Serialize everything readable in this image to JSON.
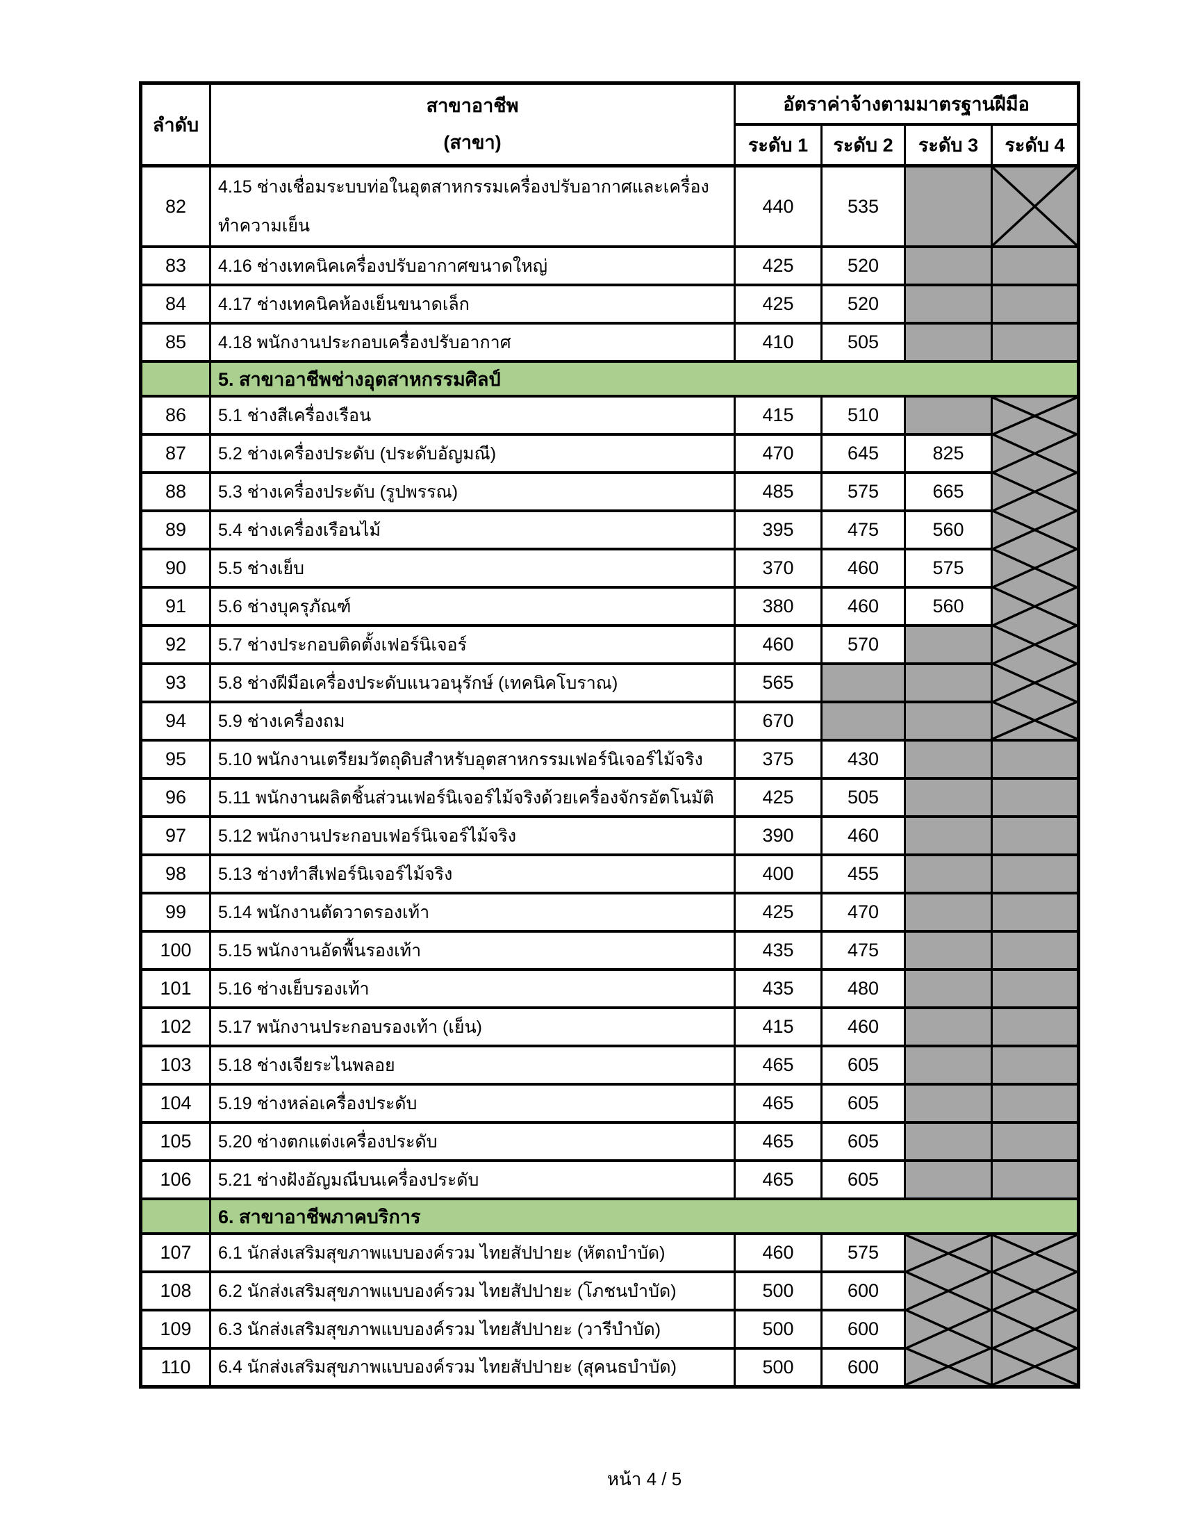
{
  "header": {
    "col_no": "ลำดับ",
    "col_occupation_line1": "สาขาอาชีพ",
    "col_occupation_line2": "(สาขา)",
    "col_rate_group": "อัตราค่าจ้างตามมาตรฐานฝีมือ",
    "levels": [
      "ระดับ 1",
      "ระดับ 2",
      "ระดับ 3",
      "ระดับ 4"
    ]
  },
  "colors": {
    "section_green": "#A9D08E",
    "disabled_gray": "#A6A6A6"
  },
  "rows": [
    {
      "type": "item",
      "no": "82",
      "name": "4.15 ช่างเชื่อมระบบท่อในอุตสาหกรรมเครื่องปรับอากาศและเครื่องทำความเย็น",
      "tall": true,
      "levels": [
        {
          "value": "440"
        },
        {
          "value": "535"
        },
        {
          "gray": true
        },
        {
          "gray": true,
          "x": true
        }
      ]
    },
    {
      "type": "item",
      "no": "83",
      "name": "4.16 ช่างเทคนิคเครื่องปรับอากาศขนาดใหญ่",
      "levels": [
        {
          "value": "425"
        },
        {
          "value": "520"
        },
        {
          "gray": true
        },
        {
          "gray": true
        }
      ]
    },
    {
      "type": "item",
      "no": "84",
      "name": "4.17 ช่างเทคนิคห้องเย็นขนาดเล็ก",
      "levels": [
        {
          "value": "425"
        },
        {
          "value": "520"
        },
        {
          "gray": true
        },
        {
          "gray": true
        }
      ]
    },
    {
      "type": "item",
      "no": "85",
      "name": "4.18 พนักงานประกอบเครื่องปรับอากาศ",
      "levels": [
        {
          "value": "410"
        },
        {
          "value": "505"
        },
        {
          "gray": true
        },
        {
          "gray": true
        }
      ]
    },
    {
      "type": "section",
      "title": "5. สาขาอาชีพช่างอุตสาหกรรมศิลป์"
    },
    {
      "type": "item",
      "no": "86",
      "name": "5.1 ช่างสีเครื่องเรือน",
      "levels": [
        {
          "value": "415"
        },
        {
          "value": "510"
        },
        {
          "gray": true
        },
        {
          "gray": true,
          "x": true
        }
      ]
    },
    {
      "type": "item",
      "no": "87",
      "name": "5.2 ช่างเครื่องประดับ (ประดับอัญมณี)",
      "levels": [
        {
          "value": "470"
        },
        {
          "value": "645"
        },
        {
          "value": "825"
        },
        {
          "gray": true,
          "x": true
        }
      ]
    },
    {
      "type": "item",
      "no": "88",
      "name": "5.3 ช่างเครื่องประดับ (รูปพรรณ)",
      "levels": [
        {
          "value": "485"
        },
        {
          "value": "575"
        },
        {
          "value": "665"
        },
        {
          "gray": true,
          "x": true
        }
      ]
    },
    {
      "type": "item",
      "no": "89",
      "name": "5.4 ช่างเครื่องเรือนไม้",
      "levels": [
        {
          "value": "395"
        },
        {
          "value": "475"
        },
        {
          "value": "560"
        },
        {
          "gray": true,
          "x": true
        }
      ]
    },
    {
      "type": "item",
      "no": "90",
      "name": "5.5 ช่างเย็บ",
      "levels": [
        {
          "value": "370"
        },
        {
          "value": "460"
        },
        {
          "value": "575"
        },
        {
          "gray": true,
          "x": true
        }
      ]
    },
    {
      "type": "item",
      "no": "91",
      "name": "5.6 ช่างบุครุภัณฑ์",
      "levels": [
        {
          "value": "380"
        },
        {
          "value": "460"
        },
        {
          "value": "560"
        },
        {
          "gray": true,
          "x": true
        }
      ]
    },
    {
      "type": "item",
      "no": "92",
      "name": "5.7 ช่างประกอบติดตั้งเฟอร์นิเจอร์",
      "levels": [
        {
          "value": "460"
        },
        {
          "value": "570"
        },
        {
          "gray": true
        },
        {
          "gray": true,
          "x": true
        }
      ]
    },
    {
      "type": "item",
      "no": "93",
      "name": "5.8 ช่างฝีมือเครื่องประดับแนวอนุรักษ์ (เทคนิคโบราณ)",
      "levels": [
        {
          "value": "565"
        },
        {
          "gray": true
        },
        {
          "gray": true
        },
        {
          "gray": true,
          "x": true
        }
      ]
    },
    {
      "type": "item",
      "no": "94",
      "name": "5.9 ช่างเครื่องถม",
      "levels": [
        {
          "value": "670"
        },
        {
          "gray": true
        },
        {
          "gray": true
        },
        {
          "gray": true,
          "x": true
        }
      ]
    },
    {
      "type": "item",
      "no": "95",
      "name": "5.10 พนักงานเตรียมวัตถุดิบสำหรับอุตสาหกรรมเฟอร์นิเจอร์ไม้จริง",
      "levels": [
        {
          "value": "375"
        },
        {
          "value": "430"
        },
        {
          "gray": true
        },
        {
          "gray": true
        }
      ]
    },
    {
      "type": "item",
      "no": "96",
      "name": "5.11 พนักงานผลิตชิ้นส่วนเฟอร์นิเจอร์ไม้จริงด้วยเครื่องจักรอัตโนมัติ",
      "levels": [
        {
          "value": "425"
        },
        {
          "value": "505"
        },
        {
          "gray": true
        },
        {
          "gray": true
        }
      ]
    },
    {
      "type": "item",
      "no": "97",
      "name": "5.12 พนักงานประกอบเฟอร์นิเจอร์ไม้จริง",
      "levels": [
        {
          "value": "390"
        },
        {
          "value": "460"
        },
        {
          "gray": true
        },
        {
          "gray": true
        }
      ]
    },
    {
      "type": "item",
      "no": "98",
      "name": "5.13 ช่างทำสีเฟอร์นิเจอร์ไม้จริง",
      "levels": [
        {
          "value": "400"
        },
        {
          "value": "455"
        },
        {
          "gray": true
        },
        {
          "gray": true
        }
      ]
    },
    {
      "type": "item",
      "no": "99",
      "name": "5.14 พนักงานตัดวาดรองเท้า",
      "levels": [
        {
          "value": "425"
        },
        {
          "value": "470"
        },
        {
          "gray": true
        },
        {
          "gray": true
        }
      ]
    },
    {
      "type": "item",
      "no": "100",
      "name": "5.15 พนักงานอัดพื้นรองเท้า",
      "levels": [
        {
          "value": "435"
        },
        {
          "value": "475"
        },
        {
          "gray": true
        },
        {
          "gray": true
        }
      ]
    },
    {
      "type": "item",
      "no": "101",
      "name": "5.16 ช่างเย็บรองเท้า",
      "levels": [
        {
          "value": "435"
        },
        {
          "value": "480"
        },
        {
          "gray": true
        },
        {
          "gray": true
        }
      ]
    },
    {
      "type": "item",
      "no": "102",
      "name": "5.17 พนักงานประกอบรองเท้า (เย็น)",
      "levels": [
        {
          "value": "415"
        },
        {
          "value": "460"
        },
        {
          "gray": true
        },
        {
          "gray": true
        }
      ]
    },
    {
      "type": "item",
      "no": "103",
      "name": "5.18 ช่างเจียระไนพลอย",
      "levels": [
        {
          "value": "465"
        },
        {
          "value": "605"
        },
        {
          "gray": true
        },
        {
          "gray": true
        }
      ]
    },
    {
      "type": "item",
      "no": "104",
      "name": "5.19 ช่างหล่อเครื่องประดับ",
      "levels": [
        {
          "value": "465"
        },
        {
          "value": "605"
        },
        {
          "gray": true
        },
        {
          "gray": true
        }
      ]
    },
    {
      "type": "item",
      "no": "105",
      "name": "5.20 ช่างตกแต่งเครื่องประดับ",
      "levels": [
        {
          "value": "465"
        },
        {
          "value": "605"
        },
        {
          "gray": true
        },
        {
          "gray": true
        }
      ]
    },
    {
      "type": "item",
      "no": "106",
      "name": "5.21 ช่างฝังอัญมณีบนเครื่องประดับ",
      "levels": [
        {
          "value": "465"
        },
        {
          "value": "605"
        },
        {
          "gray": true
        },
        {
          "gray": true
        }
      ]
    },
    {
      "type": "section",
      "title": "6. สาขาอาชีพภาคบริการ"
    },
    {
      "type": "item",
      "no": "107",
      "name": "6.1 นักส่งเสริมสุขภาพแบบองค์รวม ไทยสัปปายะ (หัตถบำบัด)",
      "levels": [
        {
          "value": "460"
        },
        {
          "value": "575"
        },
        {
          "gray": true,
          "x": true
        },
        {
          "gray": true,
          "x": true
        }
      ]
    },
    {
      "type": "item",
      "no": "108",
      "name": "6.2 นักส่งเสริมสุขภาพแบบองค์รวม ไทยสัปปายะ (โภชนบำบัด)",
      "levels": [
        {
          "value": "500"
        },
        {
          "value": "600"
        },
        {
          "gray": true,
          "x": true
        },
        {
          "gray": true,
          "x": true
        }
      ]
    },
    {
      "type": "item",
      "no": "109",
      "name": "6.3 นักส่งเสริมสุขภาพแบบองค์รวม ไทยสัปปายะ (วารีบำบัด)",
      "levels": [
        {
          "value": "500"
        },
        {
          "value": "600"
        },
        {
          "gray": true,
          "x": true
        },
        {
          "gray": true,
          "x": true
        }
      ]
    },
    {
      "type": "item",
      "no": "110",
      "name": "6.4 นักส่งเสริมสุขภาพแบบองค์รวม ไทยสัปปายะ (สุคนธบำบัด)",
      "levels": [
        {
          "value": "500"
        },
        {
          "value": "600"
        },
        {
          "gray": true,
          "x": true
        },
        {
          "gray": true,
          "x": true
        }
      ]
    }
  ],
  "footer": {
    "page_label": "หน้า 4 / 5"
  }
}
